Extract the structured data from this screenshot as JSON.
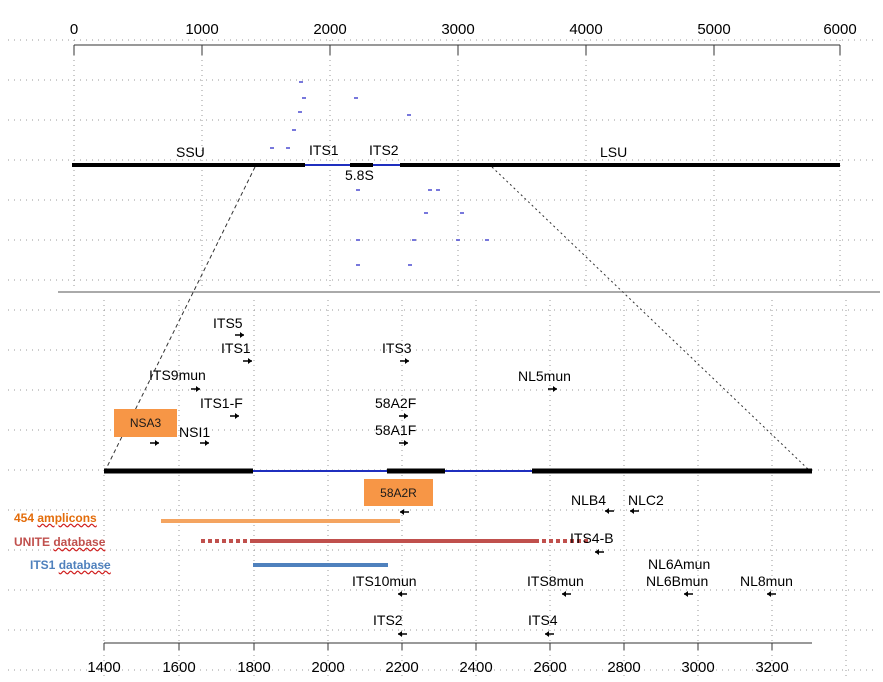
{
  "top_axis": {
    "ticks": [
      "0",
      "1000",
      "2000",
      "3000",
      "4000",
      "5000",
      "6000"
    ]
  },
  "top_regions": {
    "ssu": "SSU",
    "its1": "ITS1",
    "its2": "ITS2",
    "s58": "5.8S",
    "lsu": "LSU"
  },
  "bottom_axis": {
    "ticks": [
      "1400",
      "1600",
      "1800",
      "2000",
      "2200",
      "2400",
      "2600",
      "2800",
      "3000",
      "3200"
    ]
  },
  "primers": {
    "its5": "ITS5",
    "its1": "ITS1",
    "its9mun": "ITS9mun",
    "its1f": "ITS1-F",
    "nsi1": "NSI1",
    "its3": "ITS3",
    "a58a2f": "58A2F",
    "a58a1f": "58A1F",
    "nl5mun": "NL5mun",
    "nlb4": "NLB4",
    "nlc2": "NLC2",
    "its4b": "ITS4-B",
    "nl6amun": "NL6Amun",
    "nl6bmun": "NL6Bmun",
    "nl8mun": "NL8mun",
    "its10mun": "ITS10mun",
    "its8mun": "ITS8mun",
    "its2": "ITS2",
    "its4": "ITS4"
  },
  "highlighted_primers": {
    "nsa3": "NSA3",
    "a58a2r": "58A2R"
  },
  "legend": {
    "amplicons_num": "454",
    "amplicons_word": "amplicons",
    "unite_word1": "UNITE",
    "unite_word2": "database",
    "its1db_word1": "ITS1",
    "its1db_word2": "database"
  },
  "colors": {
    "amplicons": "#f4a460",
    "amplicons_text": "#e36c0a",
    "unite": "#c0504d",
    "its1db": "#4f81bd",
    "highlight_box": "#f79646",
    "its_line": "#1f2fbf"
  }
}
